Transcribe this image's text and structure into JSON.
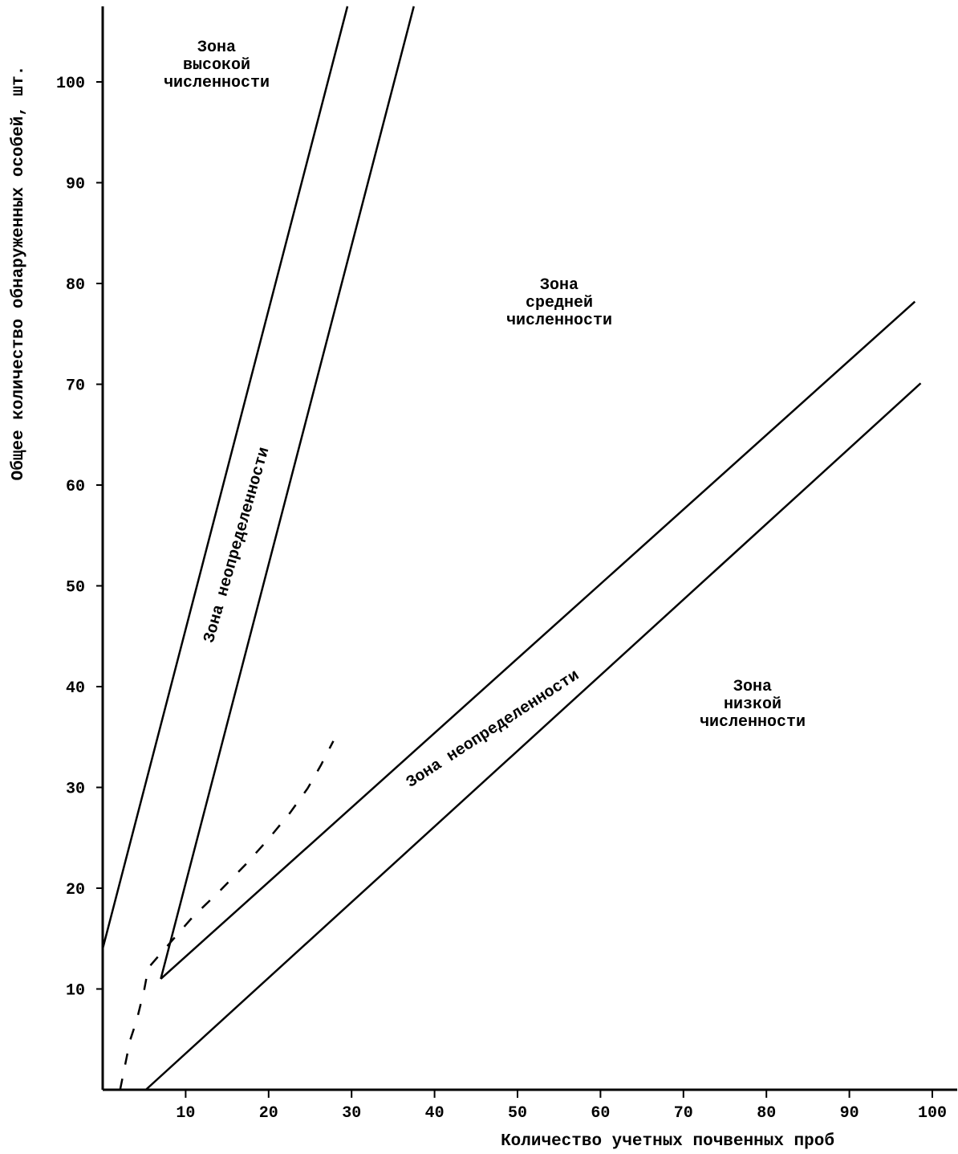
{
  "chart_data": {
    "type": "line",
    "title": "",
    "xlabel": "Количество учетных почвенных проб",
    "ylabel": "Общее количество обнаруженных особей, шт.",
    "xlim": [
      0,
      103
    ],
    "ylim": [
      0,
      107.5
    ],
    "xticks": [
      10,
      20,
      30,
      40,
      50,
      60,
      70,
      80,
      90,
      100
    ],
    "yticks": [
      10,
      20,
      30,
      40,
      50,
      60,
      70,
      80,
      90,
      100
    ],
    "grid": false,
    "series": [
      {
        "name": "upper boundary of high-uncertainty zone",
        "style": "solid",
        "x": [
          0,
          29.5
        ],
        "y": [
          14,
          107.5
        ]
      },
      {
        "name": "lower boundary of high-uncertainty zone",
        "style": "solid",
        "x": [
          7,
          37.5
        ],
        "y": [
          11,
          107.5
        ]
      },
      {
        "name": "upper boundary of low-uncertainty zone",
        "style": "solid",
        "x": [
          7,
          97.9
        ],
        "y": [
          11,
          78.2
        ]
      },
      {
        "name": "lower boundary of low-uncertainty zone",
        "style": "solid",
        "x": [
          5.2,
          98.6
        ],
        "y": [
          0,
          70.1
        ]
      },
      {
        "name": "dashed curve",
        "style": "dashed",
        "x": [
          2.1,
          3.3,
          4.1,
          5.0,
          5.5,
          7.4,
          10.8,
          14.2,
          17.4,
          20.0,
          22.6,
          24.7,
          26.3,
          27.8
        ],
        "y": [
          0,
          4.9,
          6.9,
          9.9,
          12.1,
          13.9,
          17.1,
          19.8,
          22.5,
          24.9,
          27.5,
          29.9,
          32.2,
          34.6
        ]
      }
    ],
    "annotations": [
      {
        "lines": [
          "Зона",
          "высокой",
          "численности"
        ]
      },
      {
        "lines": [
          "Зона",
          "средней",
          "численности"
        ]
      },
      {
        "lines": [
          "Зона",
          "низкой",
          "численности"
        ]
      },
      {
        "lines": [
          "Зона неопределенности"
        ]
      },
      {
        "lines": [
          "Зона неопределенности"
        ]
      }
    ]
  }
}
